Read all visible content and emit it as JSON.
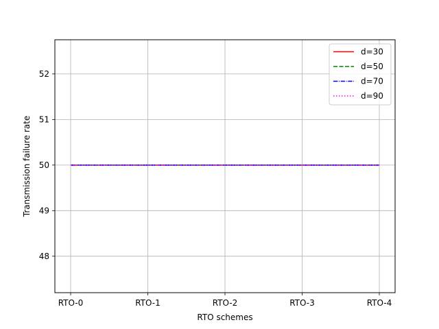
{
  "chart_data": {
    "type": "line",
    "title": "",
    "xlabel": "RTO schemes",
    "ylabel": "Transmission failure rate",
    "categories": [
      "RTO-0",
      "RTO-1",
      "RTO-2",
      "RTO-3",
      "RTO-4"
    ],
    "yticks": [
      48,
      49,
      50,
      51,
      52
    ],
    "ylim": [
      47.2,
      52.75
    ],
    "grid": true,
    "legend_position": "top-right",
    "series": [
      {
        "name": "d=30",
        "values": [
          50,
          50,
          50,
          50,
          50
        ],
        "color": "#ff0000",
        "style": "solid"
      },
      {
        "name": "d=50",
        "values": [
          50,
          50,
          50,
          50,
          50
        ],
        "color": "#008000",
        "style": "dashed"
      },
      {
        "name": "d=70",
        "values": [
          50,
          50,
          50,
          50,
          50
        ],
        "color": "#0000ff",
        "style": "dashdot"
      },
      {
        "name": "d=90",
        "values": [
          50,
          50,
          50,
          50,
          50
        ],
        "color": "#ff00ff",
        "style": "dotted"
      }
    ]
  }
}
